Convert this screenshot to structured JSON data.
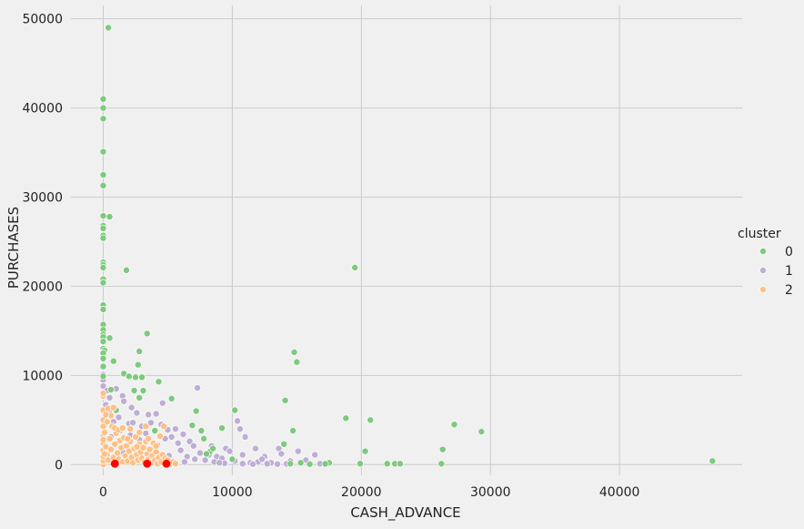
{
  "chart_data": {
    "type": "scatter",
    "xlabel": "CASH_ADVANCE",
    "ylabel": "PURCHASES",
    "xlim": [
      -2500,
      49500
    ],
    "ylim": [
      -1200,
      51500
    ],
    "xticks": [
      0,
      10000,
      20000,
      30000,
      40000
    ],
    "yticks": [
      0,
      10000,
      20000,
      30000,
      40000,
      50000
    ],
    "grid": true,
    "legend": {
      "title": "cluster",
      "placement": "right"
    },
    "series": [
      {
        "name": "0",
        "color": "#7fc97f",
        "points": [
          [
            400,
            49000
          ],
          [
            0,
            41000
          ],
          [
            0,
            40000
          ],
          [
            0,
            38800
          ],
          [
            0,
            35100
          ],
          [
            0,
            32500
          ],
          [
            0,
            31300
          ],
          [
            0,
            27900
          ],
          [
            500,
            27800
          ],
          [
            0,
            26800
          ],
          [
            0,
            26500
          ],
          [
            0,
            25700
          ],
          [
            0,
            25400
          ],
          [
            0,
            22700
          ],
          [
            0,
            22400
          ],
          [
            0,
            22100
          ],
          [
            1800,
            21800
          ],
          [
            0,
            20800
          ],
          [
            0,
            20400
          ],
          [
            0,
            17900
          ],
          [
            0,
            17400
          ],
          [
            0,
            15700
          ],
          [
            0,
            15100
          ],
          [
            0,
            14600
          ],
          [
            0,
            14300
          ],
          [
            500,
            14200
          ],
          [
            0,
            13800
          ],
          [
            0,
            13000
          ],
          [
            100,
            12800
          ],
          [
            0,
            12500
          ],
          [
            0,
            11900
          ],
          [
            0,
            11000
          ],
          [
            800,
            11600
          ],
          [
            1600,
            10200
          ],
          [
            2000,
            9900
          ],
          [
            2500,
            9800
          ],
          [
            3000,
            9800
          ],
          [
            2800,
            12700
          ],
          [
            3400,
            14700
          ],
          [
            2700,
            11200
          ],
          [
            2800,
            7500
          ],
          [
            4300,
            9300
          ],
          [
            5300,
            7400
          ],
          [
            3100,
            8300
          ],
          [
            7200,
            6000
          ],
          [
            6900,
            4400
          ],
          [
            7600,
            3800
          ],
          [
            7800,
            2900
          ],
          [
            8300,
            1500
          ],
          [
            9200,
            4100
          ],
          [
            8500,
            1800
          ],
          [
            10200,
            6100
          ],
          [
            14100,
            7200
          ],
          [
            14800,
            12600
          ],
          [
            15000,
            11500
          ],
          [
            14700,
            3800
          ],
          [
            14000,
            2300
          ],
          [
            18800,
            5200
          ],
          [
            20700,
            5000
          ],
          [
            19500,
            22100
          ],
          [
            20300,
            1500
          ],
          [
            27200,
            4500
          ],
          [
            29300,
            3700
          ],
          [
            26300,
            1700
          ],
          [
            47200,
            400
          ],
          [
            15300,
            200
          ],
          [
            17500,
            200
          ],
          [
            19900,
            100
          ],
          [
            22000,
            100
          ],
          [
            22600,
            100
          ],
          [
            23000,
            100
          ],
          [
            26200,
            100
          ],
          [
            16000,
            50
          ],
          [
            17200,
            80
          ],
          [
            14500,
            100
          ],
          [
            1000,
            6100
          ],
          [
            600,
            8400
          ],
          [
            2400,
            8300
          ],
          [
            4000,
            3800
          ],
          [
            8000,
            1200
          ],
          [
            10000,
            600
          ],
          [
            0,
            9900
          ]
        ]
      },
      {
        "name": "1",
        "color": "#beaed4",
        "points": [
          [
            0,
            10100
          ],
          [
            0,
            9500
          ],
          [
            0,
            8800
          ],
          [
            100,
            8100
          ],
          [
            300,
            8300
          ],
          [
            500,
            7500
          ],
          [
            1000,
            8500
          ],
          [
            200,
            6700
          ],
          [
            700,
            6200
          ],
          [
            1500,
            7700
          ],
          [
            1600,
            7100
          ],
          [
            2200,
            6400
          ],
          [
            2600,
            5800
          ],
          [
            3500,
            5600
          ],
          [
            4100,
            5700
          ],
          [
            1200,
            5300
          ],
          [
            800,
            4800
          ],
          [
            2000,
            4600
          ],
          [
            3000,
            4300
          ],
          [
            3700,
            4700
          ],
          [
            4500,
            4500
          ],
          [
            5000,
            3900
          ],
          [
            5600,
            4000
          ],
          [
            6200,
            3400
          ],
          [
            6700,
            2600
          ],
          [
            7300,
            8600
          ],
          [
            7000,
            2100
          ],
          [
            8200,
            1100
          ],
          [
            9500,
            1800
          ],
          [
            10400,
            4900
          ],
          [
            10600,
            4000
          ],
          [
            11000,
            3100
          ],
          [
            10800,
            1100
          ],
          [
            11800,
            1800
          ],
          [
            12500,
            900
          ],
          [
            13600,
            1800
          ],
          [
            13800,
            1200
          ],
          [
            15100,
            1500
          ],
          [
            16400,
            1100
          ],
          [
            12000,
            300
          ],
          [
            13000,
            200
          ],
          [
            14500,
            400
          ],
          [
            15700,
            500
          ],
          [
            16800,
            100
          ],
          [
            5300,
            3100
          ],
          [
            4800,
            2900
          ],
          [
            6000,
            1600
          ],
          [
            7500,
            1300
          ],
          [
            8800,
            900
          ],
          [
            9200,
            700
          ],
          [
            9800,
            1500
          ],
          [
            10200,
            400
          ],
          [
            11400,
            200
          ],
          [
            3300,
            3500
          ],
          [
            2800,
            2800
          ],
          [
            1800,
            2200
          ],
          [
            4200,
            2200
          ],
          [
            5800,
            2400
          ],
          [
            6500,
            900
          ],
          [
            7900,
            500
          ],
          [
            8600,
            300
          ],
          [
            9400,
            150
          ],
          [
            2300,
            4700
          ],
          [
            1300,
            3800
          ],
          [
            500,
            5800
          ],
          [
            3900,
            1700
          ],
          [
            5100,
            1000
          ],
          [
            6300,
            300
          ],
          [
            7100,
            600
          ],
          [
            8400,
            2100
          ],
          [
            9000,
            200
          ],
          [
            10800,
            100
          ],
          [
            12700,
            100
          ],
          [
            13500,
            50
          ],
          [
            14200,
            80
          ],
          [
            4600,
            6900
          ],
          [
            3600,
            1200
          ],
          [
            2100,
            3300
          ],
          [
            600,
            3100
          ],
          [
            1500,
            1400
          ],
          [
            11600,
            50
          ],
          [
            12300,
            600
          ]
        ]
      },
      {
        "name": "2",
        "color": "#fdc086",
        "points": [
          [
            0,
            0
          ],
          [
            0,
            400
          ],
          [
            0,
            900
          ],
          [
            0,
            1600
          ],
          [
            0,
            2400
          ],
          [
            0,
            3200
          ],
          [
            0,
            4300
          ],
          [
            0,
            5000
          ],
          [
            0,
            6100
          ],
          [
            0,
            7700
          ],
          [
            0,
            8000
          ],
          [
            100,
            3600
          ],
          [
            200,
            2000
          ],
          [
            300,
            1100
          ],
          [
            400,
            500
          ],
          [
            500,
            2900
          ],
          [
            600,
            1700
          ],
          [
            700,
            4300
          ],
          [
            800,
            800
          ],
          [
            900,
            2300
          ],
          [
            1000,
            3500
          ],
          [
            1100,
            1300
          ],
          [
            1200,
            600
          ],
          [
            1300,
            2700
          ],
          [
            1400,
            1900
          ],
          [
            1500,
            300
          ],
          [
            1600,
            3000
          ],
          [
            1700,
            1000
          ],
          [
            1800,
            2100
          ],
          [
            1900,
            400
          ],
          [
            2000,
            1500
          ],
          [
            2100,
            2600
          ],
          [
            2200,
            800
          ],
          [
            2300,
            200
          ],
          [
            2400,
            1800
          ],
          [
            2500,
            3100
          ],
          [
            2600,
            1100
          ],
          [
            2700,
            500
          ],
          [
            2800,
            2300
          ],
          [
            2900,
            1400
          ],
          [
            3000,
            700
          ],
          [
            3100,
            1900
          ],
          [
            3200,
            300
          ],
          [
            3300,
            2600
          ],
          [
            3400,
            1200
          ],
          [
            3500,
            600
          ],
          [
            3600,
            1700
          ],
          [
            3700,
            200
          ],
          [
            3800,
            1000
          ],
          [
            3900,
            2400
          ],
          [
            4000,
            500
          ],
          [
            4100,
            1400
          ],
          [
            4200,
            100
          ],
          [
            4300,
            800
          ],
          [
            4400,
            3200
          ],
          [
            4500,
            300
          ],
          [
            4600,
            1100
          ],
          [
            4700,
            4300
          ],
          [
            4800,
            700
          ],
          [
            4900,
            200
          ],
          [
            5000,
            500
          ],
          [
            5200,
            100
          ],
          [
            5400,
            300
          ],
          [
            5600,
            100
          ],
          [
            300,
            4800
          ],
          [
            600,
            5500
          ],
          [
            900,
            4100
          ],
          [
            1200,
            3900
          ],
          [
            2800,
            3600
          ],
          [
            3300,
            4300
          ],
          [
            400,
            6300
          ],
          [
            800,
            6400
          ],
          [
            1500,
            4100
          ],
          [
            2100,
            4000
          ],
          [
            0,
            2800
          ],
          [
            100,
            1200
          ],
          [
            200,
            5600
          ],
          [
            1900,
            2900
          ],
          [
            2600,
            2000
          ],
          [
            3500,
            2900
          ],
          [
            4100,
            2100
          ]
        ]
      }
    ],
    "centroids": {
      "color": "#ff0000",
      "points": [
        [
          900,
          100
        ],
        [
          3400,
          100
        ],
        [
          4900,
          100
        ]
      ]
    }
  }
}
